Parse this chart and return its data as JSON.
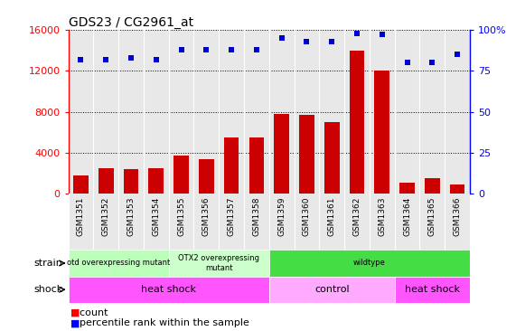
{
  "title": "GDS23 / CG2961_at",
  "samples": [
    "GSM1351",
    "GSM1352",
    "GSM1353",
    "GSM1354",
    "GSM1355",
    "GSM1356",
    "GSM1357",
    "GSM1358",
    "GSM1359",
    "GSM1360",
    "GSM1361",
    "GSM1362",
    "GSM1363",
    "GSM1364",
    "GSM1365",
    "GSM1366"
  ],
  "counts": [
    1800,
    2500,
    2400,
    2500,
    3700,
    3400,
    5500,
    5500,
    7800,
    7700,
    7000,
    14000,
    12000,
    1100,
    1500,
    900
  ],
  "percentiles": [
    82,
    82,
    83,
    82,
    88,
    88,
    88,
    88,
    95,
    93,
    93,
    98,
    97,
    80,
    80,
    85
  ],
  "ylim_left": [
    0,
    16000
  ],
  "ylim_right": [
    0,
    100
  ],
  "yticks_left": [
    0,
    4000,
    8000,
    12000,
    16000
  ],
  "yticks_right": [
    0,
    25,
    50,
    75,
    100
  ],
  "bar_color": "#cc0000",
  "dot_color": "#0000cc",
  "plot_bg": "#e8e8e8",
  "strain_boundaries": [
    0,
    4,
    8,
    16
  ],
  "strain_labels": [
    "otd overexpressing mutant",
    "OTX2 overexpressing\nmutant",
    "wildtype"
  ],
  "strain_colors": [
    "#bbffbb",
    "#ccffcc",
    "#44dd44"
  ],
  "shock_boundaries": [
    0,
    8,
    13,
    16
  ],
  "shock_labels": [
    "heat shock",
    "control",
    "heat shock"
  ],
  "shock_colors": [
    "#ff55ff",
    "#ffaaff",
    "#ff55ff"
  ]
}
